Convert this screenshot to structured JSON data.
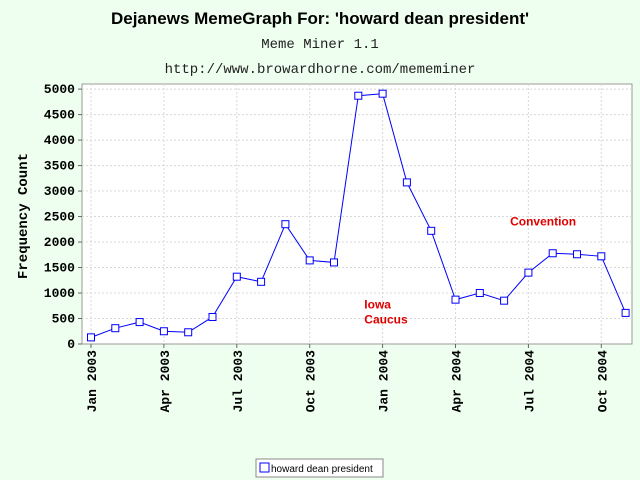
{
  "chart_data": {
    "type": "line",
    "title": "Dejanews MemeGraph For: 'howard dean president'",
    "subtitles": [
      "Meme Miner 1.1",
      "http://www.browardhorne.com/mememiner"
    ],
    "xlabel": "",
    "ylabel": "Frequency Count",
    "ylim": [
      0,
      5100
    ],
    "yticks": [
      0,
      500,
      1000,
      1500,
      2000,
      2500,
      3000,
      3500,
      4000,
      4500,
      5000
    ],
    "xticks": [
      "Jan 2003",
      "Apr 2003",
      "Jul 2003",
      "Oct 2003",
      "Jan 2004",
      "Apr 2004",
      "Jul 2004",
      "Oct 2004"
    ],
    "x": [
      "Jan 2003",
      "Feb 2003",
      "Mar 2003",
      "Apr 2003",
      "May 2003",
      "Jun 2003",
      "Jul 2003",
      "Aug 2003",
      "Sep 2003",
      "Oct 2003",
      "Nov 2003",
      "Dec 2003",
      "Jan 2004",
      "Feb 2004",
      "Mar 2004",
      "Apr 2004",
      "May 2004",
      "Jun 2004",
      "Jul 2004",
      "Aug 2004",
      "Sep 2004",
      "Oct 2004",
      "Nov 2004"
    ],
    "series": [
      {
        "name": "howard dean president",
        "color": "#0000ff",
        "values": [
          130,
          310,
          430,
          250,
          230,
          530,
          1320,
          1220,
          2350,
          1640,
          1600,
          4870,
          4910,
          3170,
          2220,
          870,
          1000,
          850,
          1400,
          1780,
          1760,
          1720,
          610
        ]
      }
    ],
    "annotations": [
      {
        "lines": [
          "Iowa",
          "Caucus"
        ],
        "x": "Dec 2003",
        "y": 700,
        "color": "#e00000"
      },
      {
        "lines": [
          "Convention"
        ],
        "x": "Jun 2004",
        "y": 2320,
        "color": "#e00000"
      }
    ],
    "grid": true,
    "legend_position": "bottom-center"
  }
}
